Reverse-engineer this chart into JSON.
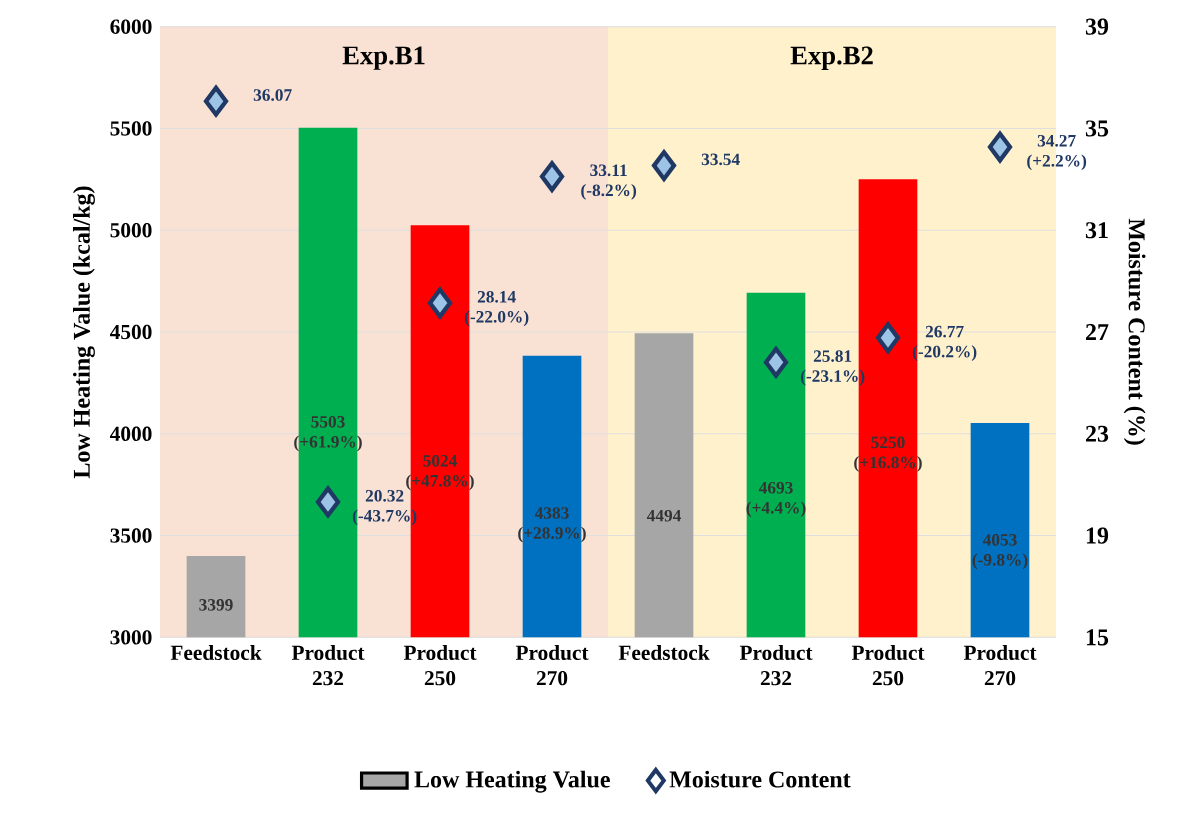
{
  "chart_data": {
    "type": "bar",
    "ylabel": "Low Heating Value (kcal/kg)",
    "y2label": "Moisture Content (%)",
    "categories": [
      "Feedstock",
      "Product 232",
      "Product 250",
      "Product 270",
      "Feedstock",
      "Product 232",
      "Product 250",
      "Product 270"
    ],
    "series": [
      {
        "name": "Low Heating Value",
        "colors": [
          "#a6a6a6",
          "#00b050",
          "#ff0000",
          "#0070c0",
          "#a6a6a6",
          "#00b050",
          "#ff0000",
          "#0070c0"
        ],
        "values": [
          3399,
          5503,
          5024,
          4383,
          4494,
          4693,
          5250,
          4053
        ],
        "value_labels": [
          "3399",
          "5503 (+61.9%)",
          "5024 (+47.8%)",
          "4383 (+28.9%)",
          "4494",
          "4693 (+4.4%)",
          "5250 (+16.8%)",
          "4053 (-9.8%)"
        ]
      },
      {
        "name": "Moisture Content",
        "type": "scatter",
        "axis": "y2",
        "marker": "diamond",
        "color": "#1f3864",
        "values": [
          36.07,
          20.32,
          28.14,
          33.11,
          33.54,
          25.81,
          26.77,
          34.27
        ],
        "value_labels": [
          "36.07",
          "20.32 (-43.7%)",
          "28.14 (-22.0%)",
          "33.11 (-8.2%)",
          "33.54",
          "25.81 (-23.1%)",
          "26.77 (-20.2%)",
          "34.27 (+2.2%)"
        ]
      }
    ],
    "ylim": [
      3000,
      6000
    ],
    "yticks": [
      3000,
      3500,
      4000,
      4500,
      5000,
      5500,
      6000
    ],
    "y2lim": [
      15,
      39
    ],
    "y2ticks": [
      15,
      19,
      23,
      27,
      31,
      35,
      39
    ],
    "bands": [
      {
        "axis": "x",
        "from": "Feedstock",
        "to": "Product 270",
        "label": "Exp.B1",
        "color": "#f9e1d3"
      }
    ],
    "annotations": [
      "Exp.B2"
    ],
    "grid": "y",
    "legend": "bottom"
  }
}
